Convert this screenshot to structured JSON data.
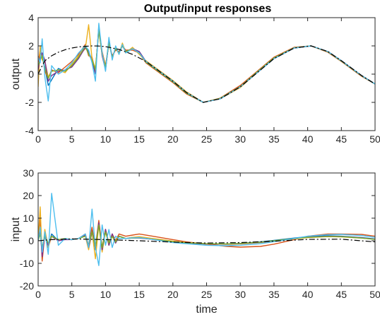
{
  "figure": {
    "title": "Output/input responses"
  },
  "chart_data": [
    {
      "type": "line",
      "title": "Output/input responses",
      "xlabel": "",
      "ylabel": "output",
      "xlim": [
        0,
        50
      ],
      "ylim": [
        -4,
        4
      ],
      "xticks": [
        0,
        5,
        10,
        15,
        20,
        25,
        30,
        35,
        40,
        45,
        50
      ],
      "yticks": [
        -4,
        -2,
        0,
        2,
        4
      ],
      "grid": false,
      "legend": "none",
      "reference": {
        "style": "dash-dot",
        "color": "#000000",
        "x": [
          0,
          0.5,
          1,
          2,
          3,
          4,
          5,
          6,
          7,
          8,
          9,
          10,
          12,
          14,
          16,
          18,
          20,
          22,
          24.5,
          27,
          30,
          32,
          35,
          38,
          40.5,
          43,
          45,
          48,
          50
        ],
        "y": [
          0,
          0.5,
          0.95,
          1.3,
          1.55,
          1.73,
          1.85,
          1.93,
          1.97,
          2.0,
          1.99,
          1.95,
          1.75,
          1.4,
          0.9,
          0.2,
          -0.5,
          -1.3,
          -2.0,
          -1.75,
          -0.9,
          -0.1,
          1.1,
          1.85,
          2.0,
          1.6,
          0.95,
          -0.1,
          -0.7
        ]
      },
      "series": [
        {
          "color": "#0072BD",
          "x": [
            0,
            0.3,
            0.6,
            1,
            1.5,
            2,
            3,
            4,
            5,
            6,
            7,
            7.5,
            8,
            8.5,
            9,
            9.5,
            10,
            10.5,
            11,
            11.5,
            12,
            12.5,
            13,
            14,
            15,
            16,
            18,
            20,
            22,
            24.5,
            27,
            30,
            32,
            35,
            38,
            40.5,
            43,
            45,
            48,
            50
          ],
          "y": [
            1.0,
            1.5,
            1.2,
            0.5,
            -0.8,
            -0.4,
            0.4,
            0.2,
            0.6,
            1.2,
            1.9,
            1.6,
            1.0,
            0.0,
            3.4,
            1.4,
            0.4,
            2.3,
            1.2,
            1.8,
            1.5,
            2.1,
            1.6,
            1.8,
            1.6,
            0.9,
            0.2,
            -0.5,
            -1.3,
            -2.0,
            -1.75,
            -0.9,
            -0.1,
            1.1,
            1.85,
            2.0,
            1.6,
            0.95,
            -0.1,
            -0.7
          ]
        },
        {
          "color": "#D95319",
          "x": [
            0,
            0.3,
            0.6,
            1,
            1.5,
            2,
            3,
            4,
            5,
            6,
            7,
            7.5,
            8,
            8.5,
            9,
            9.5,
            10,
            10.5,
            11,
            11.5,
            12,
            12.5,
            13,
            14,
            15,
            16,
            18,
            20,
            22,
            24.5,
            27,
            30,
            32,
            35,
            38,
            40.5,
            43,
            45,
            48,
            50
          ],
          "y": [
            0.8,
            1.7,
            1.4,
            0.2,
            -0.3,
            0.3,
            0.1,
            0.5,
            0.9,
            1.4,
            2.1,
            1.3,
            1.2,
            0.2,
            3.2,
            1.6,
            0.6,
            2.2,
            1.3,
            1.7,
            1.6,
            2.0,
            1.7,
            1.7,
            1.5,
            0.8,
            0.1,
            -0.6,
            -1.4,
            -2.0,
            -1.7,
            -0.8,
            0.0,
            1.2,
            1.9,
            2.0,
            1.55,
            0.9,
            -0.15,
            -0.7
          ]
        },
        {
          "color": "#EDB120",
          "x": [
            0,
            0.3,
            0.6,
            1,
            1.5,
            2,
            3,
            4,
            5,
            6,
            7,
            7.5,
            8,
            8.5,
            9,
            9.5,
            10,
            10.5,
            11,
            11.5,
            12,
            12.5,
            13,
            14,
            15,
            16,
            18,
            20,
            22,
            24.5,
            27,
            30,
            32,
            35,
            38,
            40.5,
            43,
            45,
            48,
            50
          ],
          "y": [
            -0.9,
            2.0,
            1.0,
            0.9,
            -0.2,
            0.2,
            0.3,
            0.1,
            0.7,
            1.3,
            1.8,
            3.5,
            1.1,
            0.4,
            3.0,
            1.5,
            0.5,
            2.4,
            1.1,
            1.9,
            1.4,
            2.2,
            1.5,
            1.9,
            1.4,
            0.95,
            0.25,
            -0.45,
            -1.25,
            -2.0,
            -1.75,
            -0.95,
            -0.1,
            1.1,
            1.85,
            2.0,
            1.6,
            0.95,
            -0.1,
            -0.7
          ]
        },
        {
          "color": "#7E2F8E",
          "x": [
            0,
            0.3,
            0.6,
            1,
            1.5,
            2,
            3,
            4,
            5,
            6,
            7,
            7.5,
            8,
            8.5,
            9,
            9.5,
            10,
            10.5,
            11,
            11.5,
            12,
            12.5,
            13,
            14,
            15,
            16,
            18,
            20,
            22,
            24.5,
            27,
            30,
            32,
            35,
            38,
            40.5,
            43,
            45,
            48,
            50
          ],
          "y": [
            0.3,
            1.2,
            1.5,
            1.0,
            -0.5,
            -0.1,
            0.2,
            0.3,
            0.5,
            1.1,
            1.9,
            1.5,
            0.9,
            0.1,
            3.3,
            1.3,
            0.3,
            2.3,
            1.2,
            1.8,
            1.5,
            2.0,
            1.6,
            1.8,
            1.6,
            0.9,
            0.2,
            -0.5,
            -1.3,
            -2.0,
            -1.75,
            -0.9,
            -0.1,
            1.1,
            1.85,
            2.0,
            1.6,
            0.95,
            -0.1,
            -0.7
          ]
        },
        {
          "color": "#77AC30",
          "x": [
            0,
            0.3,
            0.6,
            1,
            1.5,
            2,
            3,
            4,
            5,
            6,
            7,
            7.5,
            8,
            8.5,
            9,
            9.5,
            10,
            10.5,
            11,
            11.5,
            12,
            12.5,
            13,
            14,
            15,
            16,
            18,
            20,
            22,
            24.5,
            27,
            30,
            32,
            35,
            38,
            40.5,
            43,
            45,
            48,
            50
          ],
          "y": [
            0.6,
            1.0,
            1.3,
            0.4,
            -0.3,
            0.2,
            0.3,
            0.2,
            0.6,
            1.2,
            2.0,
            1.4,
            1.0,
            0.3,
            3.1,
            1.4,
            0.5,
            2.2,
            1.2,
            1.8,
            1.5,
            2.0,
            1.6,
            1.8,
            1.5,
            0.85,
            0.15,
            -0.55,
            -1.35,
            -2.0,
            -1.72,
            -0.88,
            -0.05,
            1.15,
            1.87,
            2.0,
            1.58,
            0.92,
            -0.12,
            -0.7
          ]
        },
        {
          "color": "#4DBEEE",
          "x": [
            0,
            0.3,
            0.6,
            1,
            1.5,
            2,
            3,
            4,
            5,
            6,
            7,
            7.5,
            8,
            8.5,
            9,
            9.5,
            10,
            10.5,
            11,
            11.5,
            12,
            12.5,
            13,
            14,
            15,
            16,
            18,
            20,
            22,
            24.5,
            27,
            30,
            32,
            35,
            38,
            40.5,
            43,
            45,
            48,
            50
          ],
          "y": [
            1.2,
            0.8,
            2.5,
            -0.2,
            -1.9,
            0.6,
            0.0,
            0.3,
            0.8,
            1.5,
            2.0,
            1.7,
            0.8,
            -0.5,
            3.6,
            1.5,
            0.2,
            2.6,
            1.0,
            2.0,
            1.4,
            2.1,
            1.5,
            1.8,
            1.5,
            0.9,
            0.2,
            -0.5,
            -1.3,
            -2.0,
            -1.75,
            -0.9,
            -0.1,
            1.1,
            1.85,
            2.0,
            1.6,
            0.95,
            -0.1,
            -0.7
          ]
        }
      ]
    },
    {
      "type": "line",
      "title": "",
      "xlabel": "time",
      "ylabel": "input",
      "xlim": [
        0,
        50
      ],
      "ylim": [
        -20,
        30
      ],
      "xticks": [
        0,
        5,
        10,
        15,
        20,
        25,
        30,
        35,
        40,
        45,
        50
      ],
      "yticks": [
        -20,
        -10,
        0,
        10,
        20,
        30
      ],
      "grid": false,
      "legend": "none",
      "reference": {
        "style": "dash-dot",
        "color": "#000000",
        "x": [
          0,
          2,
          5,
          10,
          15,
          20,
          25,
          30,
          35,
          40,
          45,
          50
        ],
        "y": [
          0,
          0.5,
          0.8,
          0.5,
          0.0,
          -0.6,
          -1.0,
          -0.8,
          -0.2,
          0.6,
          0.7,
          -0.5
        ]
      },
      "series": [
        {
          "color": "#0072BD",
          "x": [
            0,
            0.3,
            0.6,
            1,
            1.5,
            2,
            3,
            4,
            5,
            6,
            7,
            7.5,
            8,
            8.5,
            9,
            9.5,
            10,
            10.5,
            11,
            11.5,
            12,
            13,
            14,
            15,
            17,
            20,
            22,
            25,
            28,
            30,
            33,
            35,
            38,
            40,
            43,
            45,
            48,
            50
          ],
          "y": [
            0,
            4,
            -4,
            2,
            -3,
            3,
            0,
            1,
            0.5,
            1,
            3,
            -3,
            5,
            -4,
            8,
            -4,
            5,
            -2,
            3,
            -1,
            2,
            1,
            1.5,
            1.5,
            0.8,
            -0.5,
            -1.0,
            -1.5,
            -1.5,
            -1.2,
            -0.5,
            0.2,
            1.2,
            1.8,
            2.2,
            2.0,
            1.4,
            0.8
          ]
        },
        {
          "color": "#D95319",
          "x": [
            0,
            0.3,
            0.6,
            1,
            1.5,
            2,
            3,
            4,
            5,
            6,
            7,
            7.5,
            8,
            8.5,
            9,
            9.5,
            10,
            10.5,
            11,
            11.5,
            12,
            13,
            14,
            15,
            17,
            20,
            22,
            25,
            28,
            30,
            33,
            35,
            38,
            40,
            43,
            45,
            48,
            50
          ],
          "y": [
            0,
            10,
            -9,
            3,
            -2,
            2,
            0,
            1,
            0.5,
            1,
            3,
            -2,
            6,
            -3,
            9,
            -3,
            5,
            -1,
            3,
            0,
            3,
            2,
            2.5,
            3.0,
            2.0,
            0.5,
            -0.5,
            -1.5,
            -2.5,
            -2.8,
            -2.5,
            -1.5,
            0.5,
            2.0,
            3.0,
            3.0,
            2.8,
            2.0
          ]
        },
        {
          "color": "#EDB120",
          "x": [
            0,
            0.3,
            0.6,
            1,
            1.5,
            2,
            3,
            4,
            5,
            6,
            7,
            7.5,
            8,
            8.5,
            9,
            9.5,
            10,
            10.5,
            11,
            11.5,
            12,
            13,
            14,
            15,
            17,
            20,
            22,
            25,
            28,
            30,
            33,
            35,
            38,
            40,
            43,
            45,
            48,
            50
          ],
          "y": [
            0,
            15,
            -6,
            5,
            -3,
            2,
            0,
            1,
            0.5,
            1,
            2,
            -4,
            4,
            -8,
            7,
            -5,
            4,
            -2,
            2,
            -1,
            2,
            1,
            1.5,
            1.8,
            1.0,
            -0.2,
            -0.8,
            -1.3,
            -1.6,
            -1.4,
            -0.8,
            -0.2,
            0.8,
            1.4,
            1.8,
            1.7,
            1.2,
            0.6
          ]
        },
        {
          "color": "#7E2F8E",
          "x": [
            0,
            0.3,
            0.6,
            1,
            1.5,
            2,
            3,
            4,
            5,
            6,
            7,
            7.5,
            8,
            8.5,
            9,
            9.5,
            10,
            10.5,
            11,
            11.5,
            12,
            13,
            14,
            15,
            17,
            20,
            22,
            25,
            28,
            30,
            33,
            35,
            38,
            40,
            43,
            45,
            48,
            50
          ],
          "y": [
            0,
            5,
            -7,
            3,
            -2,
            2,
            0,
            0.5,
            0.5,
            1,
            2.5,
            -3,
            4,
            -3,
            8,
            -4,
            5,
            -2,
            3,
            -1,
            2,
            1,
            1.2,
            1.2,
            0.6,
            -0.5,
            -1.0,
            -1.4,
            -1.5,
            -1.3,
            -0.7,
            -0.1,
            1.0,
            1.6,
            2.0,
            1.9,
            1.3,
            0.7
          ]
        },
        {
          "color": "#77AC30",
          "x": [
            0,
            0.3,
            0.6,
            1,
            1.5,
            2,
            3,
            4,
            5,
            6,
            7,
            7.5,
            8,
            8.5,
            9,
            9.5,
            10,
            10.5,
            11,
            11.5,
            12,
            13,
            14,
            15,
            17,
            20,
            22,
            25,
            28,
            30,
            33,
            35,
            38,
            40,
            43,
            45,
            48,
            50
          ],
          "y": [
            0,
            3,
            -3,
            2,
            -1,
            2,
            0.5,
            1,
            0.5,
            1,
            2,
            -2,
            4,
            -3,
            7,
            -3,
            4,
            -1,
            2,
            -0.5,
            2,
            1,
            1.2,
            1.3,
            0.7,
            -0.4,
            -0.9,
            -1.3,
            -1.4,
            -1.2,
            -0.6,
            0.0,
            1.0,
            1.5,
            1.9,
            1.8,
            1.2,
            0.6
          ]
        },
        {
          "color": "#4DBEEE",
          "x": [
            0,
            0.3,
            0.6,
            1,
            1.5,
            2,
            3,
            4,
            5,
            6,
            7,
            7.5,
            8,
            8.5,
            9,
            9.5,
            10,
            10.5,
            11,
            11.5,
            12,
            13,
            14,
            15,
            17,
            20,
            22,
            25,
            28,
            30,
            33,
            35,
            38,
            40,
            43,
            45,
            48,
            50
          ],
          "y": [
            0,
            6,
            -5,
            4,
            -6,
            21,
            -2,
            1,
            0.5,
            1,
            3,
            -3,
            14,
            -3,
            -11,
            7,
            -2,
            5,
            -3,
            2,
            1,
            1,
            1.3,
            1.4,
            0.6,
            -0.8,
            -1.3,
            -2.0,
            -2.2,
            -2.0,
            -1.3,
            -0.4,
            1.0,
            2.0,
            2.7,
            2.8,
            2.3,
            1.5
          ]
        }
      ]
    }
  ]
}
